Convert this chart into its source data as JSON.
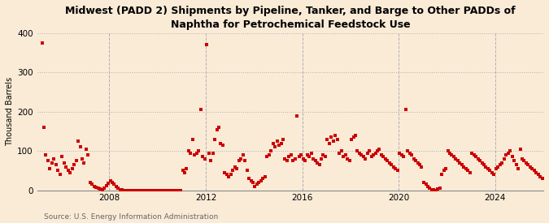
{
  "title": "Midwest (PADD 2) Shipments by Pipeline, Tanker, and Barge to Other PADDs of\nNaphtha for Petrochemical Feedstock Use",
  "ylabel": "Thousand Barrels",
  "source": "Source: U.S. Energy Information Administration",
  "background_color": "#faebd7",
  "marker_color": "#cc0000",
  "grid_color": "#b0b0b0",
  "ylim": [
    0,
    400
  ],
  "yticks": [
    0,
    100,
    200,
    300,
    400
  ],
  "xtick_years": [
    2008,
    2012,
    2016,
    2020,
    2024
  ],
  "start_year": 2005,
  "start_month": 3,
  "values": [
    375,
    160,
    90,
    75,
    55,
    70,
    80,
    65,
    50,
    40,
    85,
    70,
    60,
    50,
    45,
    55,
    65,
    75,
    125,
    110,
    80,
    70,
    105,
    90,
    20,
    15,
    10,
    8,
    5,
    3,
    2,
    5,
    12,
    18,
    25,
    20,
    15,
    10,
    5,
    2,
    1,
    0,
    0,
    0,
    0,
    0,
    0,
    0,
    0,
    0,
    0,
    0,
    0,
    0,
    0,
    0,
    0,
    0,
    0,
    0,
    0,
    0,
    0,
    0,
    0,
    0,
    0,
    0,
    0,
    0,
    50,
    45,
    55,
    100,
    95,
    130,
    90,
    95,
    100,
    205,
    85,
    80,
    370,
    95,
    75,
    95,
    130,
    155,
    160,
    120,
    115,
    45,
    40,
    35,
    40,
    50,
    60,
    55,
    75,
    80,
    90,
    75,
    50,
    30,
    25,
    20,
    10,
    15,
    20,
    25,
    30,
    35,
    85,
    90,
    100,
    120,
    110,
    125,
    115,
    120,
    130,
    80,
    75,
    85,
    90,
    75,
    80,
    190,
    85,
    90,
    80,
    75,
    90,
    85,
    95,
    80,
    75,
    70,
    65,
    80,
    90,
    85,
    130,
    120,
    135,
    125,
    140,
    130,
    95,
    100,
    85,
    90,
    80,
    75,
    130,
    135,
    140,
    100,
    95,
    90,
    85,
    80,
    95,
    100,
    85,
    90,
    95,
    100,
    105,
    90,
    85,
    80,
    75,
    70,
    65,
    60,
    55,
    50,
    95,
    90,
    85,
    205,
    100,
    95,
    90,
    80,
    75,
    70,
    65,
    60,
    20,
    15,
    10,
    5,
    2,
    1,
    0,
    3,
    5,
    40,
    50,
    55,
    100,
    95,
    90,
    85,
    80,
    75,
    70,
    65,
    60,
    55,
    50,
    45,
    95,
    90,
    85,
    80,
    75,
    70,
    65,
    60,
    55,
    50,
    45,
    40,
    55,
    60,
    65,
    70,
    80,
    90,
    95,
    100,
    85,
    75,
    65,
    55,
    105,
    80,
    75,
    70,
    65,
    60,
    55,
    50,
    45,
    40,
    35,
    30
  ]
}
